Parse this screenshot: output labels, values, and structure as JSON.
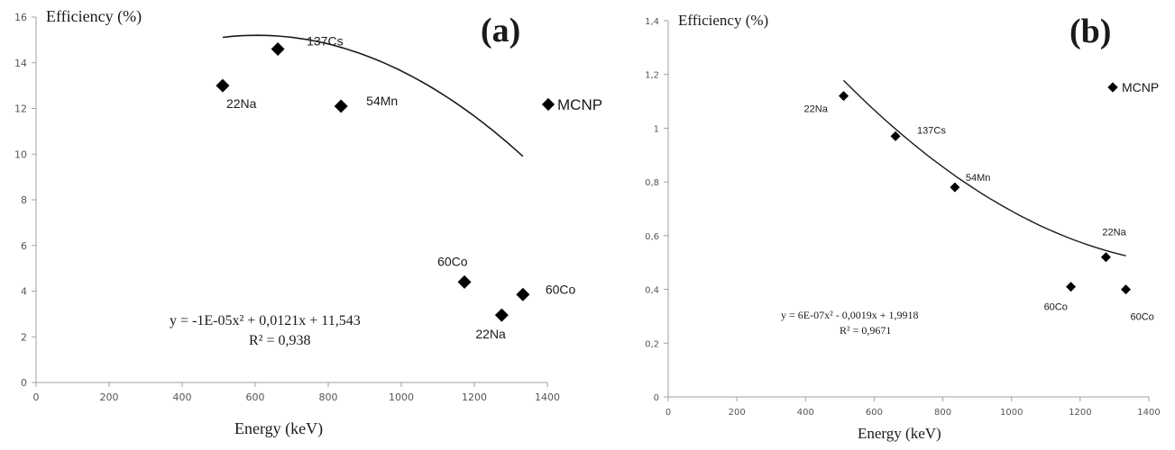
{
  "chart_data": [
    {
      "type": "scatter",
      "panel_label": "(a)",
      "ylabel": "Efficiency (%)",
      "xlabel": "Energy (keV)",
      "xlim": [
        0,
        1400
      ],
      "ylim": [
        0,
        16
      ],
      "xticks": [
        0,
        200,
        400,
        600,
        800,
        1000,
        1200,
        1400
      ],
      "yticks": [
        0,
        2,
        4,
        6,
        8,
        10,
        12,
        14,
        16
      ],
      "legend": {
        "label": "MCNP",
        "position": "right"
      },
      "series": [
        {
          "name": "MCNP",
          "color": "#000000",
          "marker": "diamond",
          "points": [
            {
              "x": 511,
              "y": 13.0,
              "label": "22Na"
            },
            {
              "x": 662,
              "y": 14.6,
              "label": "137Cs"
            },
            {
              "x": 835,
              "y": 12.1,
              "label": "54Mn"
            },
            {
              "x": 1173,
              "y": 4.4,
              "label": "60Co"
            },
            {
              "x": 1275,
              "y": 2.95,
              "label": "22Na"
            },
            {
              "x": 1333,
              "y": 3.85,
              "label": "60Co"
            }
          ]
        }
      ],
      "trendline": {
        "type": "polynomial",
        "coefficients": [
          -1e-05,
          0.0121,
          11.543
        ],
        "x_range": [
          511,
          1333
        ],
        "equation": "y = -1E-05x² + 0,0121x + 11,543",
        "r2": "R² = 0,938"
      },
      "grid": false
    },
    {
      "type": "scatter",
      "panel_label": "(b)",
      "ylabel": "Efficiency (%)",
      "xlabel": "Energy (keV)",
      "xlim": [
        0,
        1400
      ],
      "ylim": [
        0,
        1.4
      ],
      "xticks": [
        0,
        200,
        400,
        600,
        800,
        1000,
        1200,
        1400
      ],
      "yticks": [
        0,
        0.2,
        0.4,
        0.6,
        0.8,
        1,
        1.2,
        1.4
      ],
      "ytick_labels": [
        "0",
        "0,2",
        "0,4",
        "0,6",
        "0,8",
        "1",
        "1,2",
        "1,4"
      ],
      "legend": {
        "label": "MCNP",
        "position": "top-right"
      },
      "series": [
        {
          "name": "MCNP",
          "color": "#000000",
          "marker": "diamond",
          "points": [
            {
              "x": 511,
              "y": 1.12,
              "label": "22Na"
            },
            {
              "x": 662,
              "y": 0.97,
              "label": "137Cs"
            },
            {
              "x": 835,
              "y": 0.78,
              "label": "54Mn"
            },
            {
              "x": 1173,
              "y": 0.41,
              "label": "60Co"
            },
            {
              "x": 1275,
              "y": 0.52,
              "label": "22Na"
            },
            {
              "x": 1333,
              "y": 0.4,
              "label": "60Co"
            }
          ]
        }
      ],
      "trendline": {
        "type": "polynomial",
        "coefficients": [
          6e-07,
          -0.0019,
          1.9918
        ],
        "x_range": [
          511,
          1333
        ],
        "equation": "y = 6E-07x² - 0,0019x + 1,9918",
        "r2": "R² = 0,9671"
      },
      "grid": false
    }
  ]
}
